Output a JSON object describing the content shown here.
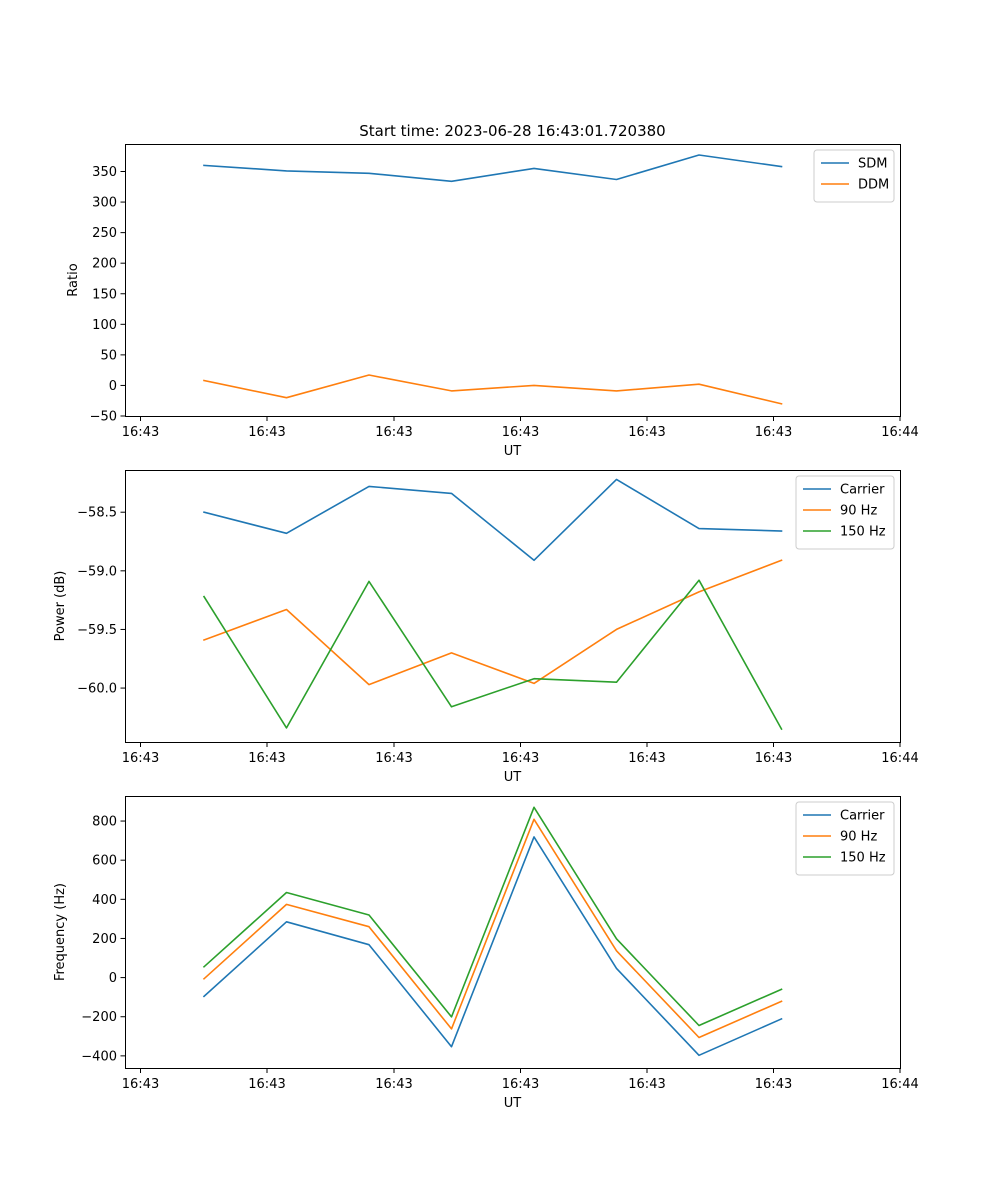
{
  "figure": {
    "title": "Start time: 2023-06-28 16:43:01.720380"
  },
  "chart_data": [
    {
      "type": "line",
      "title": "Start time: 2023-06-28 16:43:01.720380",
      "xlabel": "UT",
      "ylabel": "Ratio",
      "x_tick_labels": [
        "16:43",
        "16:43",
        "16:43",
        "16:43",
        "16:43",
        "16:43",
        "16:44"
      ],
      "y_ticks": [
        -50,
        0,
        50,
        100,
        150,
        200,
        250,
        300,
        350
      ],
      "y_tick_labels": [
        "−50",
        "0",
        "50",
        "100",
        "150",
        "200",
        "250",
        "300",
        "350"
      ],
      "ylim": [
        -50,
        395
      ],
      "grid": false,
      "legend": "top-right",
      "series": [
        {
          "name": "SDM",
          "color": "#1f77b4",
          "values": [
            360,
            351,
            347,
            334,
            355,
            337,
            377,
            358
          ]
        },
        {
          "name": "DDM",
          "color": "#ff7f0e",
          "values": [
            8,
            -20,
            17,
            -9,
            0,
            -9,
            2,
            -30
          ]
        }
      ]
    },
    {
      "type": "line",
      "xlabel": "UT",
      "ylabel": "Power (dB)",
      "x_tick_labels": [
        "16:43",
        "16:43",
        "16:43",
        "16:43",
        "16:43",
        "16:43",
        "16:44"
      ],
      "y_ticks": [
        -60.0,
        -59.5,
        -59.0,
        -58.5
      ],
      "y_tick_labels": [
        "−60.0",
        "−59.5",
        "−59.0",
        "−58.5"
      ],
      "ylim": [
        -60.46,
        -58.14
      ],
      "grid": false,
      "legend": "top-right",
      "series": [
        {
          "name": "Carrier",
          "color": "#1f77b4",
          "values": [
            -58.5,
            -58.68,
            -58.28,
            -58.34,
            -58.91,
            -58.22,
            -58.64,
            -58.66
          ]
        },
        {
          "name": "90 Hz",
          "color": "#ff7f0e",
          "values": [
            -59.59,
            -59.33,
            -59.97,
            -59.7,
            -59.96,
            -59.5,
            -59.18,
            -58.91
          ]
        },
        {
          "name": "150 Hz",
          "color": "#2ca02c",
          "values": [
            -59.22,
            -60.34,
            -59.09,
            -60.16,
            -59.92,
            -59.95,
            -59.08,
            -60.35
          ]
        }
      ]
    },
    {
      "type": "line",
      "xlabel": "UT",
      "ylabel": "Frequency (Hz)",
      "x_tick_labels": [
        "16:43",
        "16:43",
        "16:43",
        "16:43",
        "16:43",
        "16:43",
        "16:44"
      ],
      "y_ticks": [
        -400,
        -200,
        0,
        200,
        400,
        600,
        800
      ],
      "y_tick_labels": [
        "−400",
        "−200",
        "0",
        "200",
        "400",
        "600",
        "800"
      ],
      "ylim": [
        -462,
        928
      ],
      "grid": false,
      "legend": "top-right",
      "series": [
        {
          "name": "Carrier",
          "color": "#1f77b4",
          "values": [
            -96,
            285,
            168,
            -353,
            719,
            47,
            -397,
            -211
          ]
        },
        {
          "name": "90 Hz",
          "color": "#ff7f0e",
          "values": [
            -6,
            374,
            260,
            -262,
            809,
            137,
            -306,
            -121
          ]
        },
        {
          "name": "150 Hz",
          "color": "#2ca02c",
          "values": [
            55,
            435,
            320,
            -201,
            870,
            198,
            -245,
            -60
          ]
        }
      ]
    }
  ]
}
